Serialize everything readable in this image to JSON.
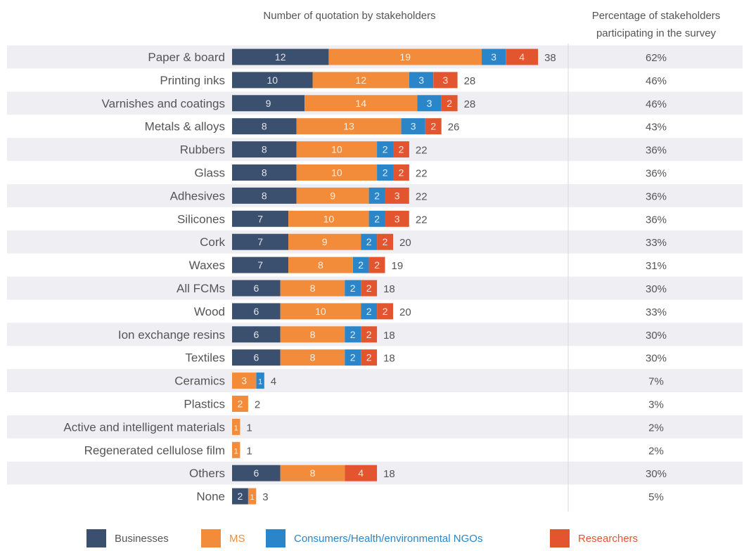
{
  "header": {
    "left_title": "Number of quotation by stakeholders",
    "right_title_line1": "Percentage of stakeholders",
    "right_title_line2": "participating in the survey"
  },
  "colors": {
    "Businesses": "#3b4f6e",
    "MS": "#f28c3b",
    "NGOs": "#2a86c8",
    "Researchers": "#e3552f",
    "stripe": "#efeff3",
    "label_text": "#555555",
    "legend_ms_text": "#f28c3b",
    "legend_ngo_text": "#2a86c8",
    "legend_res_text": "#e3552f"
  },
  "legend": [
    {
      "key": "Businesses",
      "label": "Businesses"
    },
    {
      "key": "MS",
      "label": "MS"
    },
    {
      "key": "NGOs",
      "label": "Consumers/Health/environmental NGOs"
    },
    {
      "key": "Researchers",
      "label": "Researchers"
    }
  ],
  "chart_data": {
    "type": "bar",
    "orientation": "horizontal",
    "stacked": true,
    "categories": [
      "Paper & board",
      "Printing inks",
      "Varnishes and coatings",
      "Metals & alloys",
      "Rubbers",
      "Glass",
      "Adhesives",
      "Silicones",
      "Cork",
      "Waxes",
      "All FCMs",
      "Wood",
      "Ion exchange resins",
      "Textiles",
      "Ceramics",
      "Plastics",
      "Active and intelligent materials",
      "Regenerated cellulose film",
      "Others",
      "None"
    ],
    "series": [
      {
        "name": "Businesses",
        "values": [
          12,
          10,
          9,
          8,
          8,
          8,
          8,
          7,
          7,
          7,
          6,
          6,
          6,
          6,
          0,
          0,
          0,
          0,
          6,
          2
        ]
      },
      {
        "name": "MS",
        "values": [
          19,
          12,
          14,
          13,
          10,
          10,
          9,
          10,
          9,
          8,
          8,
          10,
          8,
          8,
          3,
          2,
          1,
          1,
          8,
          1
        ]
      },
      {
        "name": "Consumers/Health/environmental NGOs",
        "values": [
          3,
          3,
          3,
          3,
          2,
          2,
          2,
          2,
          2,
          2,
          2,
          2,
          2,
          2,
          1,
          0,
          0,
          0,
          0,
          0
        ]
      },
      {
        "name": "Researchers",
        "values": [
          4,
          3,
          2,
          2,
          2,
          2,
          3,
          3,
          2,
          2,
          2,
          2,
          2,
          2,
          0,
          0,
          0,
          0,
          4,
          0
        ]
      }
    ],
    "totals": [
      38,
      28,
      28,
      26,
      22,
      22,
      22,
      22,
      20,
      19,
      18,
      20,
      18,
      18,
      4,
      2,
      1,
      1,
      18,
      3
    ],
    "percentages": [
      "62%",
      "46%",
      "46%",
      "43%",
      "36%",
      "36%",
      "36%",
      "36%",
      "33%",
      "31%",
      "30%",
      "33%",
      "30%",
      "30%",
      "7%",
      "3%",
      "2%",
      "2%",
      "30%",
      "5%"
    ]
  }
}
